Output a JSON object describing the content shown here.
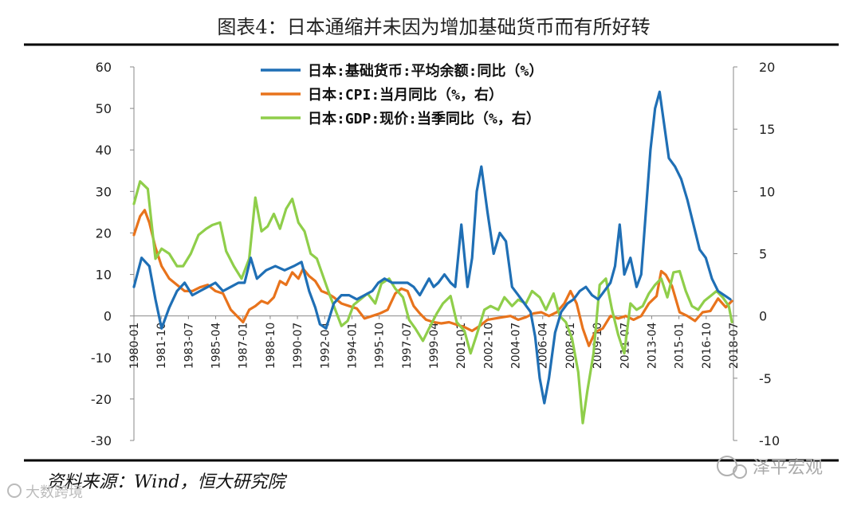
{
  "chart_data": {
    "type": "line",
    "title": "图表4：日本通缩并未因为增加基础货币而有所好转",
    "source": "资料来源：Wind，恒大研究院",
    "watermark": "泽平宏观",
    "watermark_corner": "大数跨境",
    "y_left": {
      "min": -30,
      "max": 60,
      "ticks": [
        60,
        50,
        40,
        30,
        20,
        10,
        0,
        -10,
        -20,
        -30
      ]
    },
    "y_right": {
      "min": -10,
      "max": 20,
      "ticks": [
        20,
        15,
        10,
        5,
        0,
        -5,
        -10
      ]
    },
    "x_range": [
      1980.0,
      2019.0
    ],
    "x_ticks": [
      "1980-01",
      "1981-10",
      "1983-07",
      "1985-04",
      "1987-01",
      "1988-10",
      "1990-07",
      "1992-04",
      "1994-01",
      "1995-10",
      "1997-07",
      "1999-04",
      "2001-01",
      "2002-10",
      "2004-07",
      "2006-04",
      "2008-01",
      "2009-10",
      "2011-07",
      "2013-04",
      "2015-01",
      "2016-10",
      "2018-07"
    ],
    "series": [
      {
        "name": "日本:基础货币:平均余额:同比（%）",
        "axis": "left",
        "color": "#1f6fb5",
        "x": [
          1980.0,
          1980.5,
          1981.0,
          1981.4,
          1981.8,
          1982.3,
          1982.8,
          1983.3,
          1983.8,
          1984.3,
          1984.8,
          1985.3,
          1985.8,
          1986.3,
          1986.8,
          1987.2,
          1987.6,
          1988.0,
          1988.6,
          1989.2,
          1989.8,
          1990.4,
          1990.9,
          1991.4,
          1991.8,
          1992.1,
          1992.5,
          1993.0,
          1993.5,
          1994.0,
          1994.5,
          1995.0,
          1995.5,
          1995.9,
          1996.3,
          1996.8,
          1997.3,
          1997.8,
          1998.2,
          1998.6,
          1998.9,
          1999.2,
          1999.5,
          1999.8,
          2000.2,
          2000.6,
          2000.9,
          2001.3,
          2001.7,
          2002.0,
          2002.3,
          2002.6,
          2003.0,
          2003.4,
          2003.8,
          2004.2,
          2004.6,
          2005.0,
          2005.4,
          2005.8,
          2006.1,
          2006.4,
          2006.7,
          2007.0,
          2007.4,
          2007.8,
          2008.2,
          2008.6,
          2009.0,
          2009.4,
          2009.8,
          2010.2,
          2010.6,
          2011.0,
          2011.3,
          2011.6,
          2011.9,
          2012.3,
          2012.7,
          2013.0,
          2013.3,
          2013.6,
          2013.9,
          2014.2,
          2014.5,
          2014.8,
          2015.2,
          2015.6,
          2016.0,
          2016.4,
          2016.8,
          2017.2,
          2017.6,
          2018.0,
          2018.4,
          2018.8
        ],
        "values": [
          7,
          14,
          12,
          4,
          -3,
          2,
          6,
          8,
          5,
          6,
          7,
          8,
          6,
          7,
          8,
          8,
          14,
          9,
          11,
          12,
          11,
          12,
          13,
          6,
          2,
          -2,
          -3,
          3,
          5,
          5,
          4,
          5,
          6,
          8,
          9,
          8,
          8,
          8,
          7,
          5,
          7,
          9,
          7,
          8,
          10,
          8,
          7,
          22,
          7,
          14,
          30,
          36,
          25,
          15,
          20,
          18,
          7,
          5,
          3,
          1,
          -5,
          -15,
          -21,
          -15,
          -4,
          1,
          3,
          4,
          6,
          7,
          5,
          4,
          6,
          8,
          12,
          22,
          10,
          14,
          7,
          10,
          25,
          40,
          50,
          54,
          46,
          38,
          36,
          33,
          28,
          22,
          16,
          14,
          9,
          6,
          5,
          4
        ]
      },
      {
        "name": "日本:CPI:当月同比（%，右）",
        "axis": "right",
        "color": "#e8731c",
        "x": [
          1980.0,
          1980.4,
          1980.7,
          1981.0,
          1981.4,
          1981.8,
          1982.3,
          1982.8,
          1983.3,
          1983.8,
          1984.3,
          1984.8,
          1985.3,
          1985.8,
          1986.3,
          1986.7,
          1987.1,
          1987.5,
          1987.9,
          1988.3,
          1988.7,
          1989.1,
          1989.5,
          1989.9,
          1990.3,
          1990.7,
          1991.0,
          1991.4,
          1991.8,
          1992.2,
          1992.6,
          1993.0,
          1993.5,
          1994.0,
          1994.5,
          1995.0,
          1995.5,
          1996.0,
          1996.5,
          1997.0,
          1997.4,
          1997.8,
          1998.2,
          1998.6,
          1999.0,
          1999.5,
          2000.0,
          2000.5,
          2001.0,
          2001.5,
          2002.0,
          2002.5,
          2003.0,
          2003.5,
          2004.0,
          2004.5,
          2005.0,
          2005.5,
          2006.0,
          2006.5,
          2007.0,
          2007.5,
          2008.0,
          2008.4,
          2008.8,
          2009.2,
          2009.6,
          2010.0,
          2010.5,
          2011.0,
          2011.5,
          2012.0,
          2012.5,
          2013.0,
          2013.5,
          2014.0,
          2014.3,
          2014.6,
          2015.0,
          2015.5,
          2016.0,
          2016.5,
          2017.0,
          2017.5,
          2018.0,
          2018.5,
          2018.9
        ],
        "values": [
          6.5,
          8.0,
          8.5,
          7.5,
          5.5,
          4.0,
          3.0,
          2.5,
          2.0,
          2.0,
          2.3,
          2.5,
          2.0,
          1.8,
          0.5,
          0.0,
          -0.5,
          0.5,
          0.8,
          1.2,
          1.0,
          1.5,
          2.8,
          2.5,
          3.5,
          3.0,
          3.8,
          3.2,
          2.8,
          2.0,
          1.8,
          1.5,
          1.0,
          0.8,
          0.6,
          -0.2,
          0.0,
          0.2,
          0.5,
          1.8,
          2.2,
          2.0,
          0.8,
          0.2,
          -0.3,
          -0.5,
          -0.6,
          -0.5,
          -0.7,
          -0.9,
          -1.2,
          -0.8,
          -0.3,
          -0.2,
          -0.1,
          0.0,
          -0.3,
          -0.1,
          0.2,
          0.3,
          0.0,
          0.3,
          1.0,
          2.0,
          1.0,
          -1.0,
          -2.4,
          -1.3,
          -1.0,
          0.0,
          -0.2,
          0.0,
          -0.3,
          0.0,
          1.0,
          1.6,
          3.6,
          3.3,
          2.4,
          0.3,
          0.0,
          -0.4,
          0.3,
          0.4,
          1.4,
          0.7,
          1.2
        ]
      },
      {
        "name": "日本:GDP:现价:当季同比（%，右）",
        "axis": "right",
        "color": "#8fce4a",
        "x": [
          1980.0,
          1980.4,
          1980.9,
          1981.4,
          1981.8,
          1982.3,
          1982.8,
          1983.2,
          1983.7,
          1984.2,
          1984.7,
          1985.1,
          1985.6,
          1986.0,
          1986.5,
          1987.0,
          1987.5,
          1987.9,
          1988.3,
          1988.7,
          1989.1,
          1989.5,
          1989.9,
          1990.3,
          1990.7,
          1991.1,
          1991.5,
          1991.9,
          1992.3,
          1992.7,
          1993.1,
          1993.5,
          1993.9,
          1994.3,
          1994.8,
          1995.2,
          1995.7,
          1996.1,
          1996.6,
          1997.0,
          1997.5,
          1997.9,
          1998.3,
          1998.8,
          1999.2,
          1999.7,
          2000.1,
          2000.6,
          2001.0,
          2001.5,
          2001.9,
          2002.3,
          2002.8,
          2003.2,
          2003.7,
          2004.1,
          2004.6,
          2005.0,
          2005.5,
          2005.9,
          2006.4,
          2006.8,
          2007.3,
          2007.7,
          2008.1,
          2008.5,
          2008.9,
          2009.2,
          2009.5,
          2009.9,
          2010.3,
          2010.7,
          2011.1,
          2011.5,
          2011.9,
          2012.3,
          2012.7,
          2013.1,
          2013.5,
          2013.9,
          2014.3,
          2014.7,
          2015.1,
          2015.5,
          2015.9,
          2016.3,
          2016.7,
          2017.1,
          2017.5,
          2017.9,
          2018.3,
          2018.7,
          2018.9
        ],
        "values": [
          9.0,
          10.8,
          10.2,
          4.6,
          5.4,
          5.0,
          4.0,
          4.0,
          5.0,
          6.5,
          7.0,
          7.3,
          7.5,
          5.2,
          4.0,
          3.0,
          4.6,
          9.5,
          6.8,
          7.2,
          8.2,
          7.0,
          8.6,
          9.4,
          7.5,
          6.8,
          5.0,
          4.6,
          3.2,
          1.8,
          0.5,
          -0.8,
          -0.4,
          0.9,
          1.4,
          1.8,
          1.0,
          2.6,
          3.0,
          2.2,
          1.5,
          -0.3,
          -1.0,
          -2.0,
          -1.0,
          0.2,
          1.0,
          1.6,
          -0.5,
          -1.2,
          -3.0,
          -1.5,
          0.5,
          0.8,
          0.5,
          1.5,
          0.8,
          1.3,
          1.0,
          2.0,
          1.5,
          0.5,
          1.8,
          0.0,
          -0.5,
          -1.8,
          -4.5,
          -8.6,
          -6.0,
          -3.0,
          2.5,
          3.0,
          0.5,
          -1.5,
          -3.0,
          1.0,
          0.5,
          0.8,
          1.8,
          2.5,
          3.0,
          1.5,
          3.5,
          3.6,
          2.0,
          0.8,
          0.5,
          1.2,
          1.6,
          2.0,
          1.5,
          0.8,
          -0.5
        ]
      }
    ]
  }
}
